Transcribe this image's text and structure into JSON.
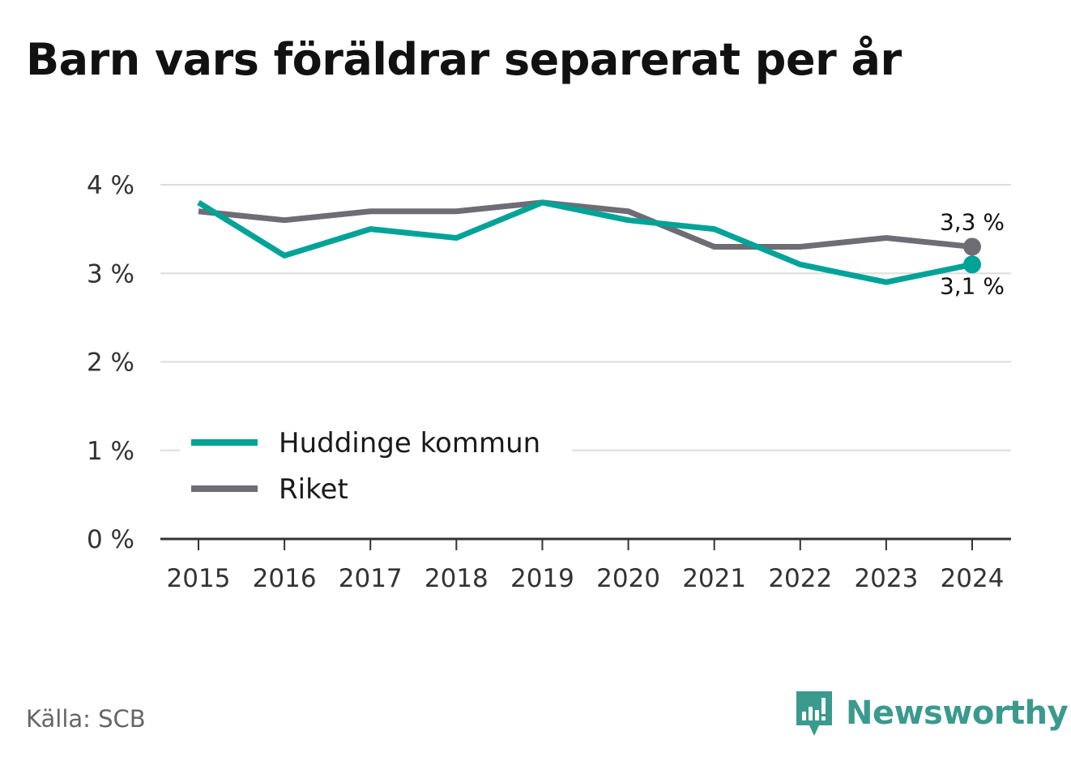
{
  "title": "Barn vars föräldrar separerat per år",
  "source": "Källa: SCB",
  "brand": "Newsworthy",
  "chart_data": {
    "type": "line",
    "title": "Barn vars föräldrar separerat per år",
    "x": [
      "2015",
      "2016",
      "2017",
      "2018",
      "2019",
      "2020",
      "2021",
      "2022",
      "2023",
      "2024"
    ],
    "ylim": [
      0,
      4
    ],
    "yticks": [
      0,
      1,
      2,
      3,
      4
    ],
    "ytick_labels": [
      "0 %",
      "1 %",
      "2 %",
      "3 %",
      "4 %"
    ],
    "grid": true,
    "legend_position": "lower-left",
    "series": [
      {
        "name": "Huddinge kommun",
        "color": "#00a398",
        "values": [
          3.8,
          3.2,
          3.5,
          3.4,
          3.8,
          3.6,
          3.5,
          3.1,
          2.9,
          3.1
        ],
        "end_label": "3,1 %"
      },
      {
        "name": "Riket",
        "color": "#6e6c74",
        "values": [
          3.7,
          3.6,
          3.7,
          3.7,
          3.8,
          3.7,
          3.3,
          3.3,
          3.4,
          3.3
        ],
        "end_label": "3,3 %"
      }
    ]
  }
}
